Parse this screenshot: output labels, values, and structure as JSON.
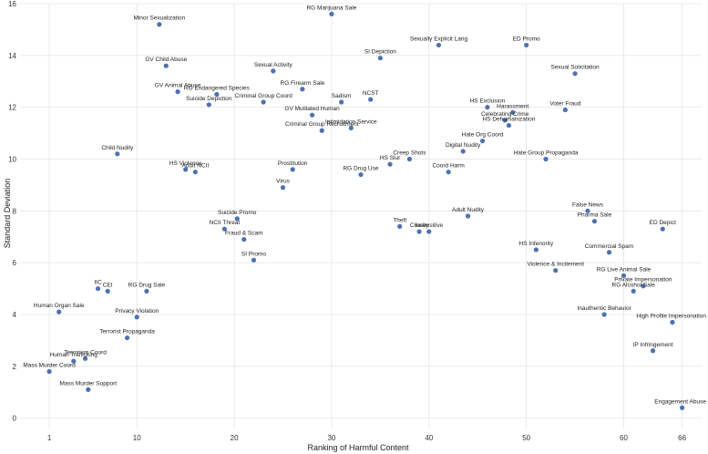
{
  "chart_data": {
    "type": "scatter",
    "title": "",
    "xlabel": "Ranking of Harmful Content",
    "ylabel": "Standard Deviation",
    "xlim": [
      -2,
      68
    ],
    "ylim": [
      -0.4,
      16
    ],
    "x_ticks": [
      1,
      10,
      20,
      30,
      40,
      50,
      60,
      66
    ],
    "y_ticks": [
      0,
      2,
      4,
      6,
      8,
      10,
      12,
      14,
      16
    ],
    "grid": true,
    "marker_color": "#4c72b0",
    "points": [
      {
        "label": "RG Marijuana Sale",
        "x": 30,
        "y": 15.6
      },
      {
        "label": "Minor Sexualization",
        "x": 12.3,
        "y": 15.2
      },
      {
        "label": "ED Promo",
        "x": 50,
        "y": 14.4
      },
      {
        "label": "Sexually Explicit Lang",
        "x": 41,
        "y": 14.4
      },
      {
        "label": "SI Depiction",
        "x": 35,
        "y": 13.9
      },
      {
        "label": "GV Child Abuse",
        "x": 13,
        "y": 13.6
      },
      {
        "label": "Sexual Activity",
        "x": 24,
        "y": 13.4
      },
      {
        "label": "Sexual Solicitation",
        "x": 55,
        "y": 13.3
      },
      {
        "label": "RG Firearm Sale",
        "x": 27,
        "y": 12.7
      },
      {
        "label": "GV Animal Abuse",
        "x": 14.2,
        "y": 12.6
      },
      {
        "label": "RG Endangered Species",
        "x": 18.2,
        "y": 12.5
      },
      {
        "label": "Sadism",
        "x": 31,
        "y": 12.2
      },
      {
        "label": "NCST",
        "x": 34,
        "y": 12.3
      },
      {
        "label": "Suicide Depiction",
        "x": 17.4,
        "y": 12.1
      },
      {
        "label": "Criminal Group Coord",
        "x": 23,
        "y": 12.2
      },
      {
        "label": "HS Exclusion",
        "x": 46,
        "y": 12.0
      },
      {
        "label": "Harassment",
        "x": 48.6,
        "y": 11.8
      },
      {
        "label": "Voter Fraud",
        "x": 54,
        "y": 11.9
      },
      {
        "label": "GV Mutilated Human",
        "x": 28,
        "y": 11.7
      },
      {
        "label": "Celebrating Crime",
        "x": 47.8,
        "y": 11.5
      },
      {
        "label": "HS Dehumanization",
        "x": 48.2,
        "y": 11.3
      },
      {
        "label": "Criminal Group Recruitment",
        "x": 29,
        "y": 11.1
      },
      {
        "label": "Intimidation Service",
        "x": 32,
        "y": 11.2
      },
      {
        "label": "Hate Org Coord",
        "x": 45.5,
        "y": 10.7
      },
      {
        "label": "Digital Nudity",
        "x": 43.5,
        "y": 10.3
      },
      {
        "label": "Child Nudity",
        "x": 8,
        "y": 10.2
      },
      {
        "label": "Creep Shots",
        "x": 38,
        "y": 10.0
      },
      {
        "label": "Hate Group Propaganda",
        "x": 52,
        "y": 10.0
      },
      {
        "label": "HS Slur",
        "x": 36,
        "y": 9.8
      },
      {
        "label": "HS Violence",
        "x": 15,
        "y": 9.6
      },
      {
        "label": "Adult NCII",
        "x": 16,
        "y": 9.5
      },
      {
        "label": "Prostitution",
        "x": 26,
        "y": 9.6
      },
      {
        "label": "Coord Harm",
        "x": 42,
        "y": 9.5
      },
      {
        "label": "RG Drug Use",
        "x": 33,
        "y": 9.4
      },
      {
        "label": "Virus",
        "x": 25,
        "y": 8.9
      },
      {
        "label": "False News",
        "x": 56.3,
        "y": 8.0
      },
      {
        "label": "Adult Nudity",
        "x": 44,
        "y": 7.8
      },
      {
        "label": "Pharma Sale",
        "x": 57,
        "y": 7.6
      },
      {
        "label": "Suicide Promo",
        "x": 20.3,
        "y": 7.7
      },
      {
        "label": "Theft",
        "x": 37,
        "y": 7.4
      },
      {
        "label": "Cruelty",
        "x": 39,
        "y": 7.2
      },
      {
        "label": "Insensitive",
        "x": 40,
        "y": 7.2
      },
      {
        "label": "ED Depict",
        "x": 64,
        "y": 7.3
      },
      {
        "label": "NCII Threat",
        "x": 19,
        "y": 7.3
      },
      {
        "label": "Fraud & Scam",
        "x": 21,
        "y": 6.9
      },
      {
        "label": "HS Inferiority",
        "x": 51,
        "y": 6.5
      },
      {
        "label": "Commercial Spam",
        "x": 58.5,
        "y": 6.4
      },
      {
        "label": "SI Promo",
        "x": 22,
        "y": 6.1
      },
      {
        "label": "Violence & Incitement",
        "x": 53,
        "y": 5.7
      },
      {
        "label": "RG Live Animal Sale",
        "x": 60,
        "y": 5.5
      },
      {
        "label": "Private Impersonation",
        "x": 62,
        "y": 5.1
      },
      {
        "label": "RG Alcohol Sale",
        "x": 61,
        "y": 4.9
      },
      {
        "label": "IIC",
        "x": 6,
        "y": 5.0
      },
      {
        "label": "CEI",
        "x": 7,
        "y": 4.9
      },
      {
        "label": "RG Drug Sale",
        "x": 11,
        "y": 4.9
      },
      {
        "label": "Human Organ Sale",
        "x": 2,
        "y": 4.1
      },
      {
        "label": "Privacy Violation",
        "x": 10,
        "y": 3.9
      },
      {
        "label": "Inauthentic Behavior",
        "x": 58,
        "y": 4.0
      },
      {
        "label": "High Profile Impersonation",
        "x": 65,
        "y": 3.7
      },
      {
        "label": "Terrorist Propaganda",
        "x": 9,
        "y": 3.1
      },
      {
        "label": "IP Infringement",
        "x": 63,
        "y": 2.6
      },
      {
        "label": "Terrorism Coord",
        "x": 4.7,
        "y": 2.3
      },
      {
        "label": "Human Trafficking",
        "x": 3.5,
        "y": 2.2
      },
      {
        "label": "Mass Murder Coord",
        "x": 1,
        "y": 1.8
      },
      {
        "label": "Mass Murder Support",
        "x": 5,
        "y": 1.1
      },
      {
        "label": "Engagement Abuse",
        "x": 66,
        "y": 0.4
      }
    ]
  }
}
